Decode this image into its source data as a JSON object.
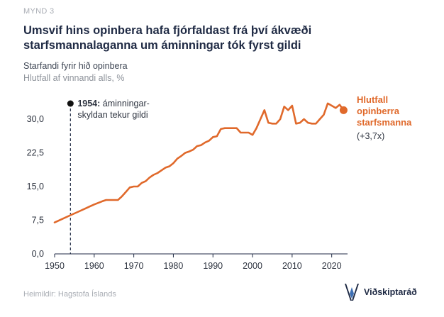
{
  "figure_label": "MYND 3",
  "title_line1": "Umsvif hins opinbera hafa fjórfaldast frá því ákvæði",
  "title_line2": "starfsmannalaganna um áminningar tók fyrst gildi",
  "subtitle": "Starfandi fyrir hið opinbera",
  "subtitle2": "Hlutfall af vinnandi alls, %",
  "source": "Heimildir: Hagstofa Íslands",
  "logo_text": "Viðskiptaráð",
  "colors": {
    "accent": "#e0692b",
    "text": "#1f2a44",
    "muted": "#8e939b"
  },
  "chart_data": {
    "type": "line",
    "x": [
      1950,
      1952,
      1954,
      1956,
      1958,
      1960,
      1962,
      1963,
      1964,
      1965,
      1966,
      1967,
      1968,
      1969,
      1970,
      1971,
      1972,
      1973,
      1974,
      1975,
      1976,
      1977,
      1978,
      1979,
      1980,
      1981,
      1982,
      1983,
      1984,
      1985,
      1986,
      1987,
      1988,
      1989,
      1990,
      1991,
      1992,
      1993,
      1994,
      1995,
      1996,
      1997,
      1998,
      1999,
      2000,
      2001,
      2002,
      2003,
      2004,
      2005,
      2006,
      2007,
      2008,
      2009,
      2010,
      2011,
      2012,
      2013,
      2014,
      2015,
      2016,
      2017,
      2018,
      2019,
      2020,
      2021,
      2022,
      2023
    ],
    "series": [
      {
        "name": "Hlutfall opinberra starfsmanna",
        "values": [
          7.0,
          7.8,
          8.6,
          9.4,
          10.2,
          11.0,
          11.7,
          12.0,
          12.0,
          12.0,
          12.0,
          12.8,
          13.8,
          14.8,
          15.0,
          15.0,
          15.8,
          16.2,
          17.0,
          17.6,
          18.0,
          18.6,
          19.2,
          19.5,
          20.2,
          21.2,
          21.8,
          22.5,
          22.8,
          23.2,
          24.0,
          24.2,
          24.8,
          25.2,
          26.0,
          26.2,
          27.8,
          28.0,
          28.0,
          28.0,
          28.0,
          27.0,
          27.0,
          27.0,
          26.5,
          28.0,
          30.0,
          32.0,
          29.2,
          29.0,
          29.0,
          30.0,
          32.8,
          32.0,
          33.0,
          29.0,
          29.2,
          30.0,
          29.2,
          29.0,
          29.0,
          30.0,
          31.0,
          33.5,
          33.0,
          32.5,
          33.2,
          32.0
        ]
      }
    ],
    "xlim": [
      1950,
      2024
    ],
    "ylim": [
      0,
      36
    ],
    "xticks": [
      1950,
      1960,
      1970,
      1980,
      1990,
      2000,
      2010,
      2020
    ],
    "yticks": [
      0,
      7.5,
      15,
      22.5,
      30
    ],
    "ytick_labels": [
      "0,0",
      "7,5",
      "15,0",
      "22,5",
      "30,0"
    ],
    "marker_year": 1954,
    "marker_label_bold": "1954:",
    "marker_label_line1": "áminningar-",
    "marker_label_line2": "skyldan tekur gildi",
    "series_label_line1": "Hlutfall",
    "series_label_line2": "opinberra",
    "series_label_line3": "starfsmanna",
    "series_change": "(+3,7x)",
    "grid": false,
    "legend": "right"
  }
}
